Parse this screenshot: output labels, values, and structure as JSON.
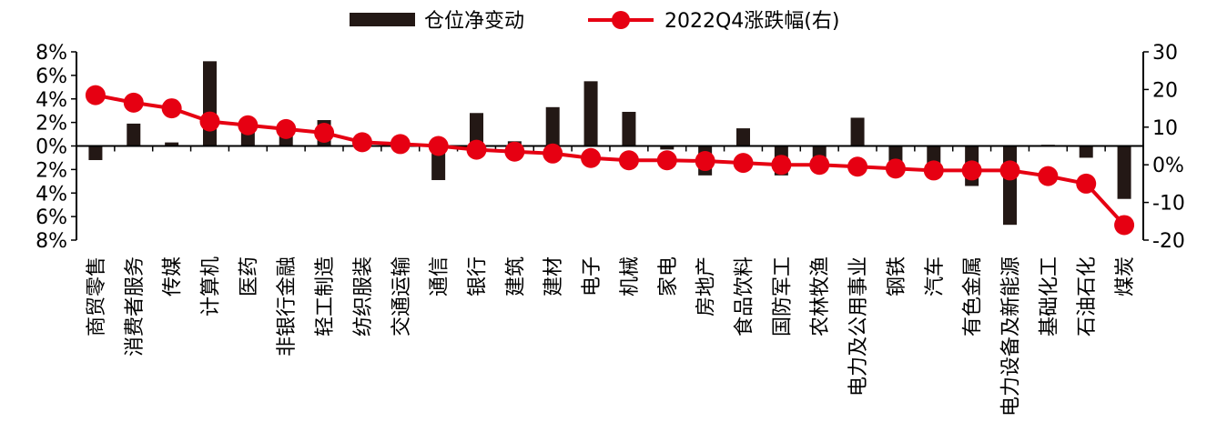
{
  "chart_data": {
    "type": "bar",
    "legend": {
      "placement": "top-center"
    },
    "categories": [
      "商贸零售",
      "消费者服务",
      "传媒",
      "计算机",
      "医药",
      "非银行金融",
      "轻工制造",
      "纺织服装",
      "交通运输",
      "通信",
      "银行",
      "建筑",
      "建材",
      "电子",
      "机械",
      "家电",
      "房地产",
      "食品饮料",
      "国防军工",
      "农林牧渔",
      "电力及公用事业",
      "钢铁",
      "汽车",
      "有色金属",
      "电力设备及新能源",
      "基础化工",
      "石油石化",
      "煤炭"
    ],
    "series": [
      {
        "name": "仓位净变动",
        "type": "bar",
        "axis": "left",
        "color": "#231815",
        "values": [
          -1.2,
          1.9,
          0.3,
          7.2,
          1.5,
          1.0,
          2.2,
          -0.3,
          0.0,
          -2.9,
          2.8,
          0.4,
          3.3,
          5.5,
          2.9,
          -0.3,
          -2.5,
          1.5,
          -2.5,
          -1.4,
          2.4,
          -2.3,
          -1.9,
          -3.4,
          -6.7,
          0.1,
          -1.0,
          -4.5
        ]
      },
      {
        "name": "2022Q4涨跌幅(右)",
        "type": "line",
        "axis": "right",
        "color": "#e60012",
        "values": [
          18.5,
          16.5,
          15.0,
          11.5,
          10.5,
          9.5,
          8.5,
          6.0,
          5.5,
          5.0,
          4.0,
          3.5,
          3.0,
          1.8,
          1.2,
          1.2,
          1.0,
          0.5,
          0.0,
          0.0,
          -0.5,
          -1.0,
          -1.5,
          -1.5,
          -1.5,
          -3.0,
          -5.0,
          -16.0
        ]
      }
    ],
    "y_left": {
      "min": -8,
      "max": 8,
      "step": 2,
      "ticks": [
        "8%",
        "6%",
        "4%",
        "2%",
        "0%",
        "2%",
        "4%",
        "6%",
        "8%"
      ]
    },
    "y_right": {
      "min": -20,
      "max": 30,
      "step": 10,
      "ticks": [
        "30",
        "20",
        "10",
        "0%",
        "-10",
        "-20"
      ]
    },
    "grid": false
  }
}
